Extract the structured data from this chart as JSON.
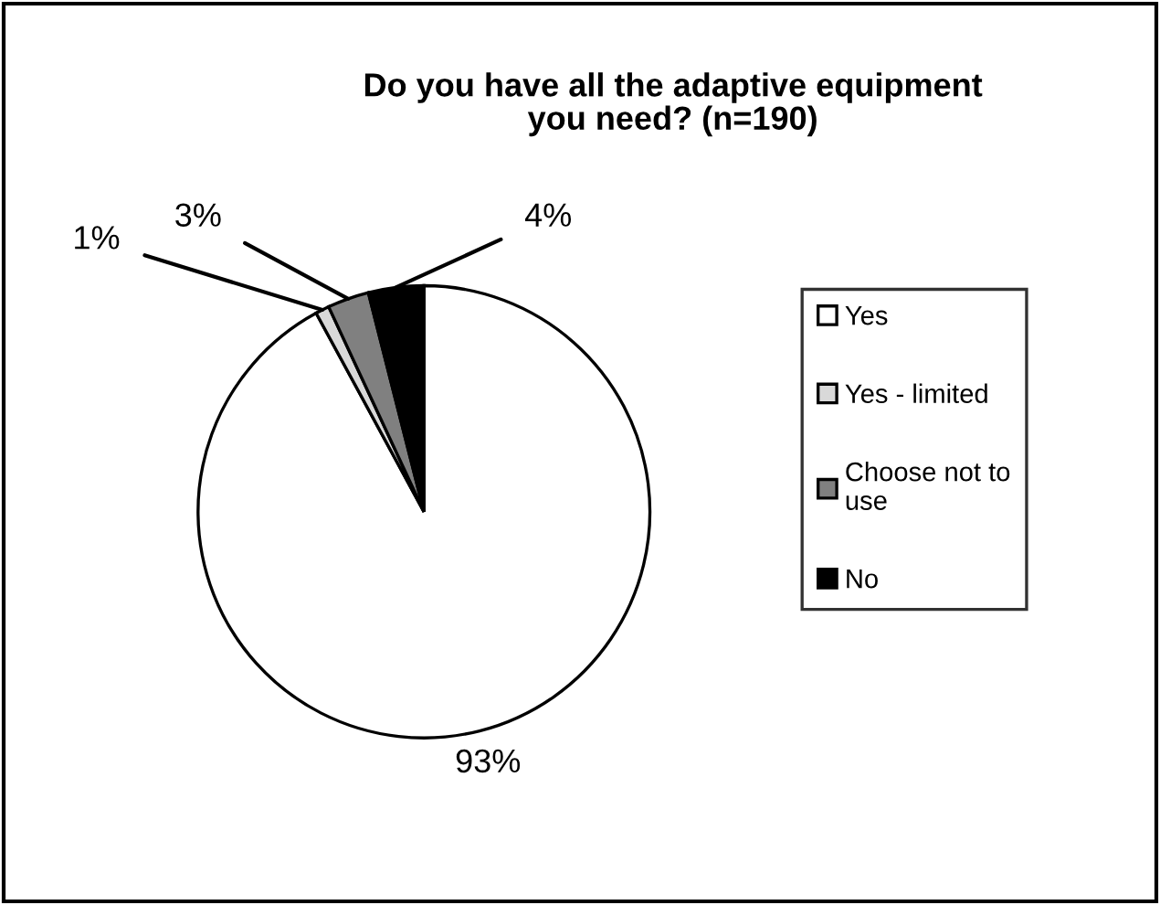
{
  "chart_data": {
    "type": "pie",
    "title": "Do you have all the adaptive equipment\nyou need? (n=190)",
    "categories": [
      "Yes",
      "Yes - limited",
      "Choose not to\nuse",
      "No"
    ],
    "values": [
      93,
      1,
      3,
      4
    ],
    "colors": [
      "#ffffff",
      "#d9d9d9",
      "#808080",
      "#000000"
    ],
    "value_labels": [
      "93%",
      "1%",
      "3%",
      "4%"
    ],
    "legend": "right"
  }
}
